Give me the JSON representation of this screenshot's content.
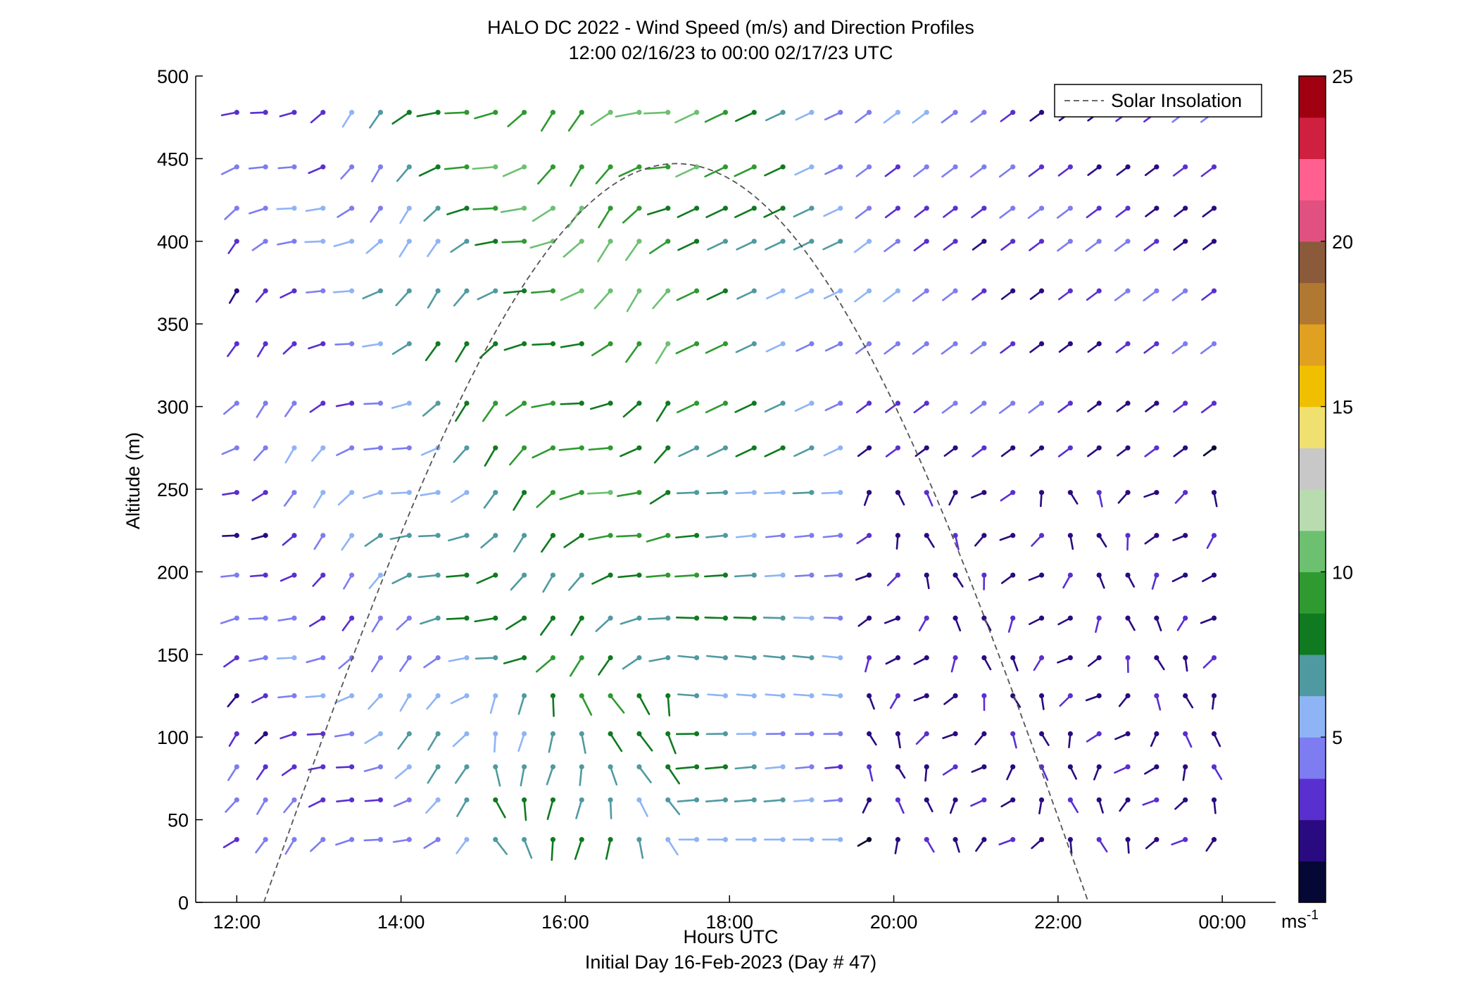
{
  "chart_data": {
    "type": "wind-barb-profile",
    "title_line1": "HALO DC 2022 - Wind Speed (m/s) and Direction Profiles",
    "title_line2": "12:00 02/16/23 to 00:00 02/17/23  UTC",
    "xlabel": "Hours UTC",
    "xlabel_sub": "Initial Day 16-Feb-2023 (Day # 47)",
    "ylabel": "Altitude (m)",
    "xlim": [
      11.5,
      24.65
    ],
    "ylim": [
      0,
      500
    ],
    "x_ticks": [
      12,
      14,
      16,
      18,
      20,
      22,
      24
    ],
    "x_tick_labels": [
      "12:00",
      "14:00",
      "16:00",
      "18:00",
      "20:00",
      "22:00",
      "00:00"
    ],
    "y_ticks": [
      0,
      50,
      100,
      150,
      200,
      250,
      300,
      350,
      400,
      450,
      500
    ],
    "y_tick_labels": [
      "0",
      "50",
      "100",
      "150",
      "200",
      "250",
      "300",
      "350",
      "400",
      "450",
      "500"
    ],
    "legend": {
      "entries": [
        "Solar Insolation"
      ],
      "position": "top-right",
      "line_style": "dashed",
      "color": "#555555"
    },
    "solar_insolation_curve": {
      "start_hour": 12.33,
      "peak_hour": 17.35,
      "end_hour": 22.37,
      "peak_altitude": 447
    },
    "colorbar": {
      "min": 0,
      "max": 25,
      "ticks": [
        5,
        10,
        15,
        20,
        25
      ],
      "tick_labels": [
        "5",
        "10",
        "15",
        "20",
        "25"
      ],
      "unit": "ms",
      "unit_exponent": "-1",
      "colors": [
        "#050835",
        "#2a0a80",
        "#5a2fd0",
        "#7d7cf0",
        "#8fb4f5",
        "#4f9aa0",
        "#0f7a20",
        "#2e9a30",
        "#6cc070",
        "#b8dcb0",
        "#c8c8c8",
        "#f0e070",
        "#f0c000",
        "#e0a020",
        "#b07830",
        "#8a5a3a",
        "#e05080",
        "#ff6090",
        "#d02040",
        "#a00010"
      ]
    },
    "times": [
      12.0,
      12.35,
      12.7,
      13.05,
      13.4,
      13.75,
      14.1,
      14.45,
      14.8,
      15.15,
      15.5,
      15.85,
      16.2,
      16.55,
      16.9,
      17.25,
      17.6,
      17.95,
      18.3,
      18.65,
      19.0,
      19.35,
      19.7,
      20.05,
      20.4,
      20.75,
      21.1,
      21.45,
      21.8,
      22.15,
      22.5,
      22.85,
      23.2,
      23.55,
      23.9
    ],
    "altitudes": [
      38,
      62,
      82,
      102,
      125,
      148,
      172,
      198,
      222,
      248,
      275,
      302,
      338,
      370,
      400,
      420,
      445,
      478
    ],
    "barb_marks": "wind vectors drawn as colored line segments with a dot at the grid point; color = speed (m/s), orientation = direction"
  }
}
